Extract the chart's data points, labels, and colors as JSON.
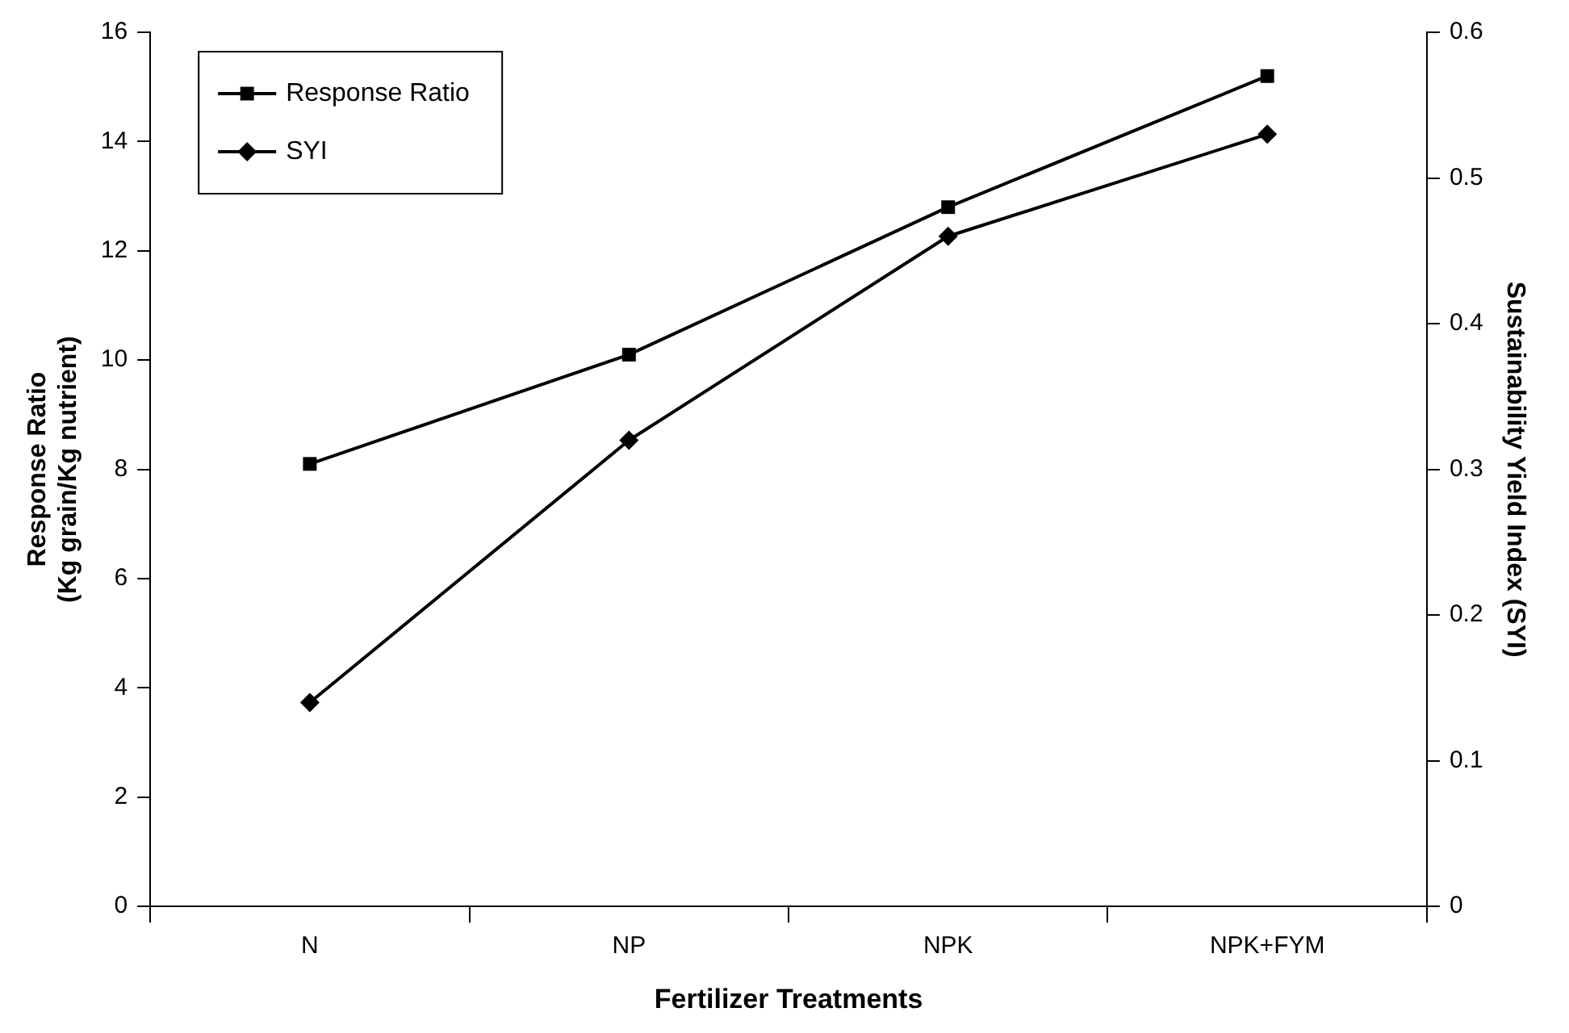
{
  "chart_data": {
    "type": "line",
    "xlabel": "Fertilizer Treatments",
    "ylabel": "Response Ratio\n(Kg grain/Kg nutrient)",
    "y2label": "Sustainability Yield Index (SYI)",
    "categories": [
      "N",
      "NP",
      "NPK",
      "NPK+FYM"
    ],
    "series": [
      {
        "name": "Response Ratio",
        "color": "#000000",
        "marker": "square",
        "values": [
          8.1,
          10.1,
          12.8,
          15.2
        ]
      },
      {
        "name": "SYI",
        "color": "#000000",
        "marker": "diamond",
        "axis": "y2",
        "values": [
          0.14,
          0.32,
          0.46,
          0.53
        ]
      }
    ],
    "ylim": [
      0,
      16
    ],
    "yticks": [
      0,
      2,
      4,
      6,
      8,
      10,
      12,
      14,
      16
    ],
    "y2lim": [
      0,
      0.6
    ],
    "y2ticks": [
      0,
      0.1,
      0.2,
      0.3,
      0.4,
      0.5,
      0.6
    ],
    "grid": false,
    "legend": "top left",
    "line_style": "solid"
  }
}
